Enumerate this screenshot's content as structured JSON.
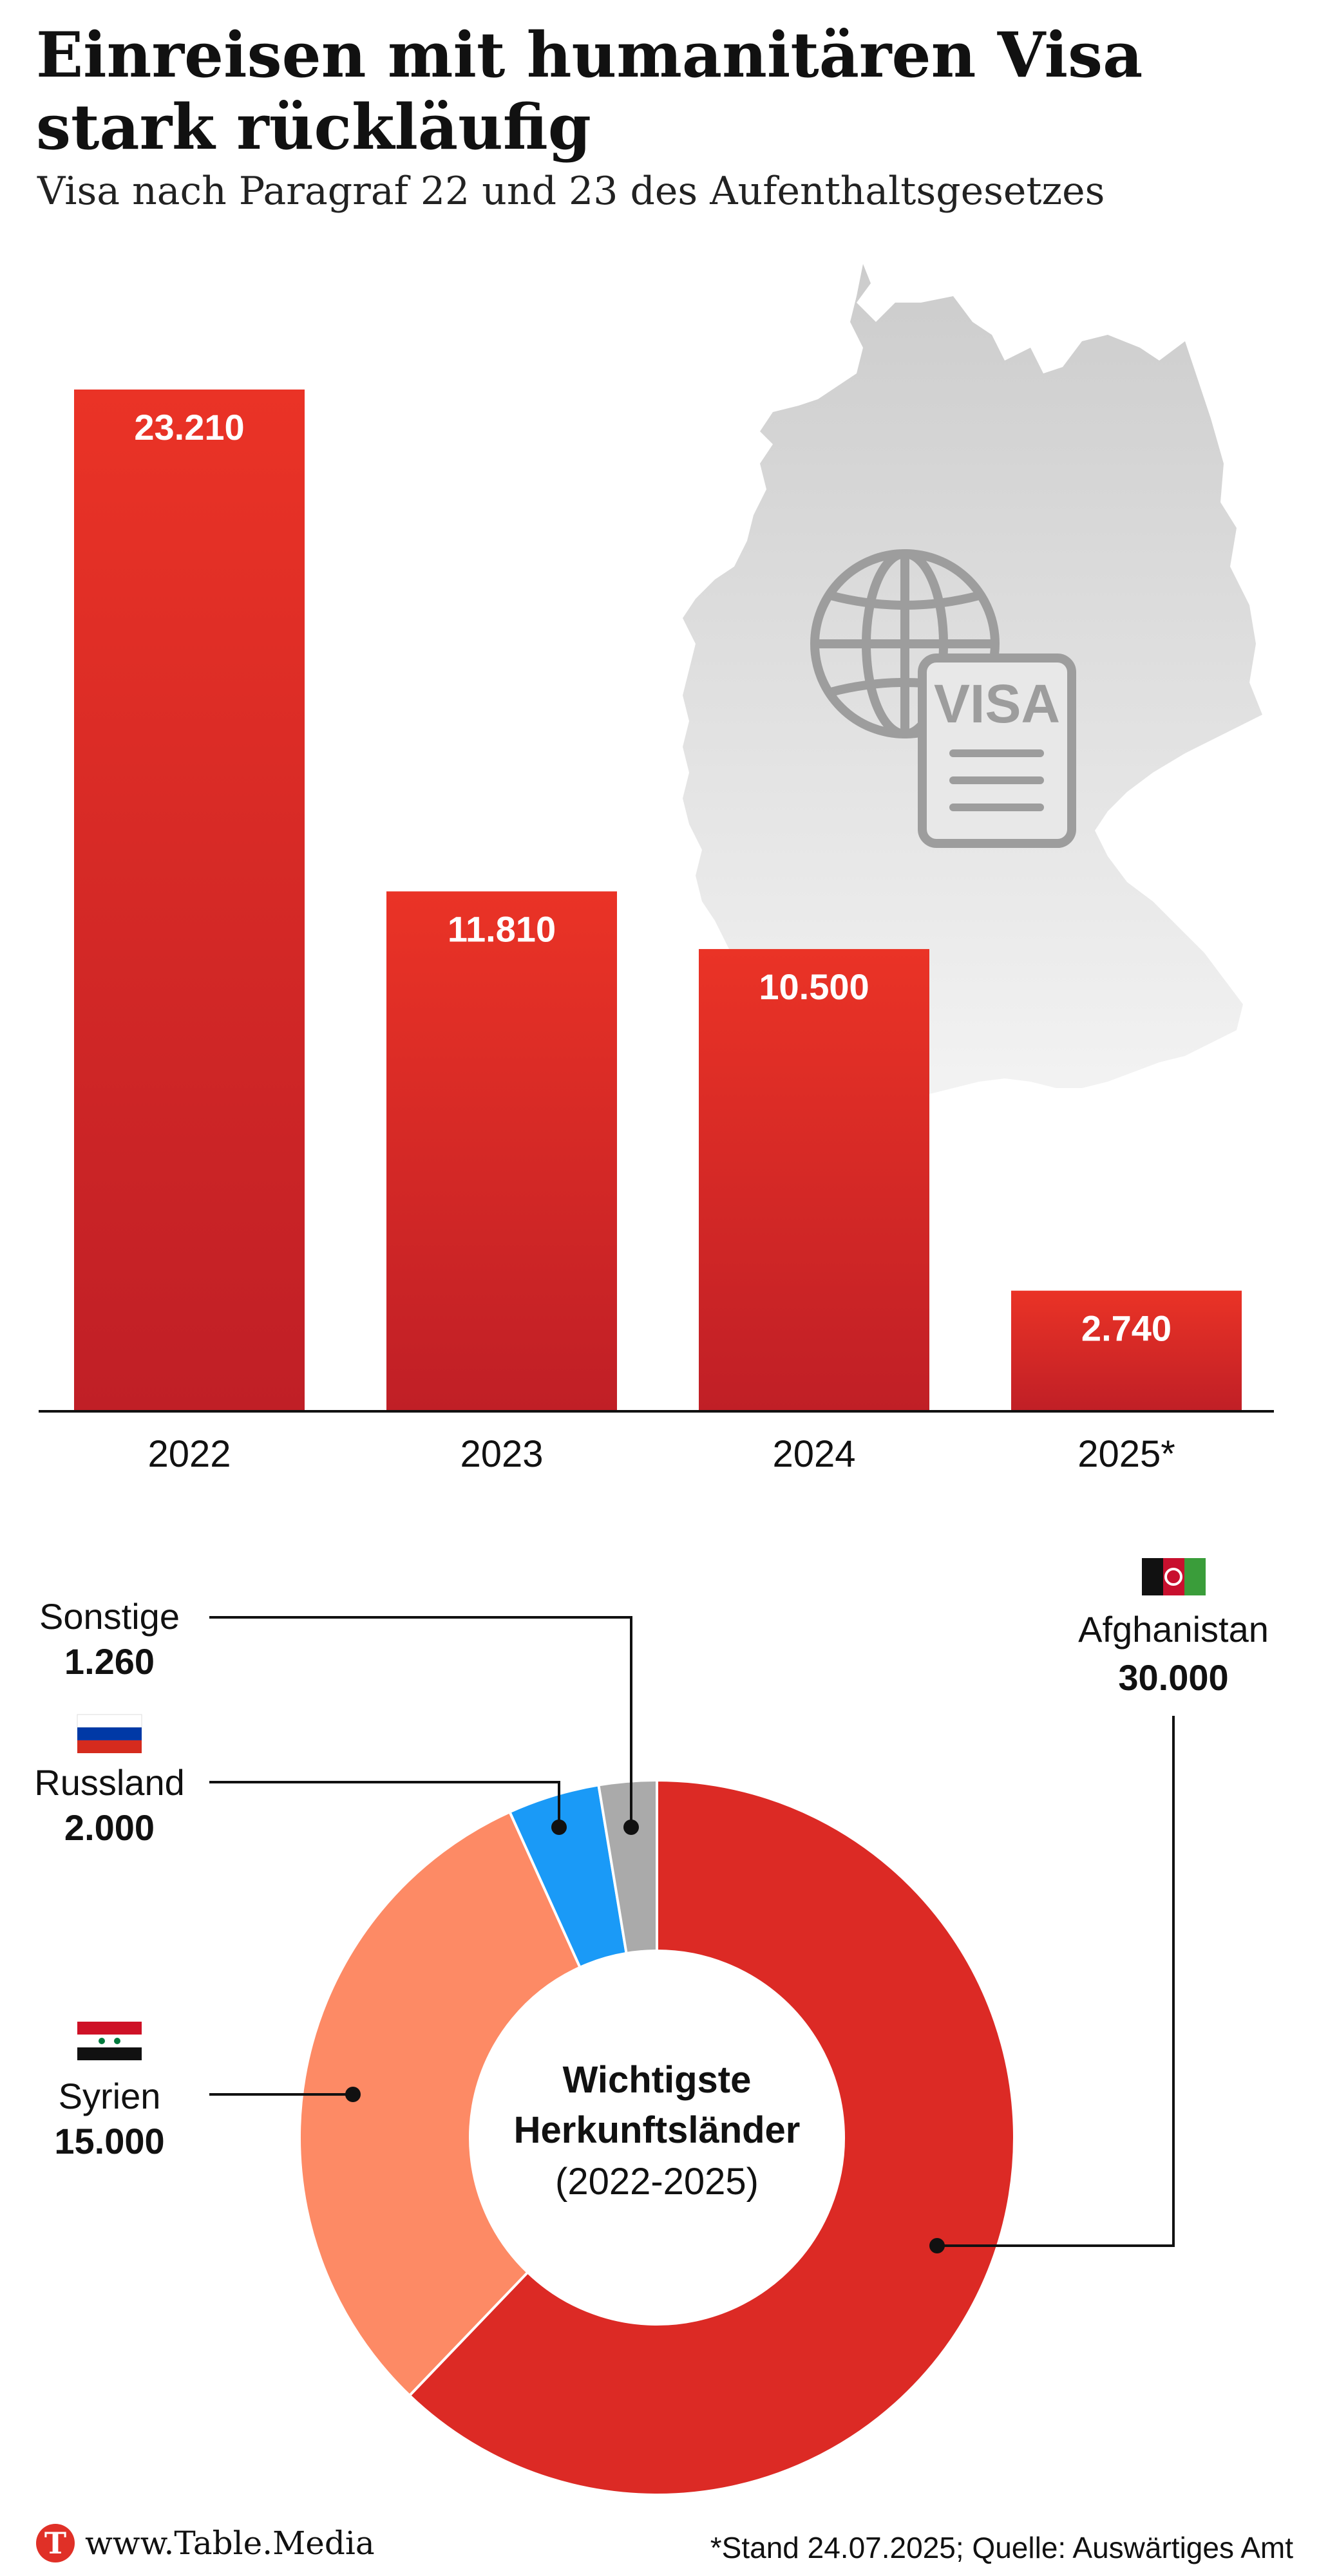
{
  "header": {
    "title": "Einreisen mit humanitären Visa stark rückläufig",
    "subtitle": "Visa nach Paragraf 22 und 23 des Aufenthaltsgesetzes"
  },
  "illustration": {
    "map_icon": "germany-map-icon",
    "globe_icon": "globe-icon",
    "visa_card_icon": "visa-document-icon",
    "visa_text": "VISA"
  },
  "chart_data": [
    {
      "type": "bar",
      "categories": [
        "2022",
        "2023",
        "2024",
        "2025*"
      ],
      "values": [
        23210,
        11810,
        10500,
        2740
      ],
      "value_labels": [
        "23.210",
        "11.810",
        "10.500",
        "2.740"
      ],
      "title": "",
      "xlabel": "",
      "ylabel": "",
      "ylim": [
        0,
        23210
      ],
      "grid": false,
      "legend": "none",
      "colors": {
        "bar_top": "#ea3326",
        "bar_bottom": "#c01f26",
        "label": "#ffffff"
      }
    },
    {
      "type": "pie",
      "variant": "donut",
      "center_label": [
        "Wichtigste",
        "Herkunftsländer",
        "(2022-2025)"
      ],
      "slices": [
        {
          "name": "Afghanistan",
          "value": 30000,
          "value_label": "30.000",
          "color": "#dc2a25",
          "flag_icon": "afghanistan-flag-icon"
        },
        {
          "name": "Syrien",
          "value": 15000,
          "value_label": "15.000",
          "color": "#fd8a65",
          "flag_icon": "syria-flag-icon"
        },
        {
          "name": "Russland",
          "value": 2000,
          "value_label": "2.000",
          "color": "#1a9af7",
          "flag_icon": "russia-flag-icon"
        },
        {
          "name": "Sonstige",
          "value": 1260,
          "value_label": "1.260",
          "color": "#aaaaaa"
        }
      ]
    }
  ],
  "footer": {
    "logo_letter": "T",
    "site": "www.Table.Media",
    "footnote": "*Stand 24.07.2025; Quelle: Auswärtiges Amt"
  }
}
